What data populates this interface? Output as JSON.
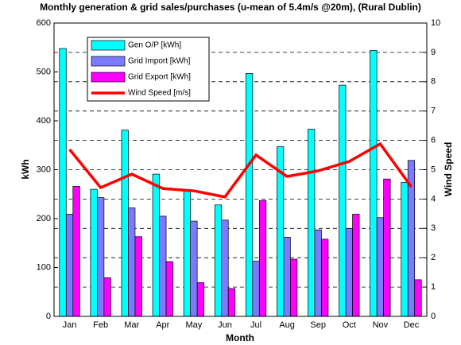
{
  "chart_data": {
    "type": "bar",
    "title": "Monthly generation & grid sales/purchases (u-mean of 5.4m/s @20m), (Rural Dublin)",
    "x_label": "Month",
    "y_label": "kWh",
    "y2_label": "Wind Speed",
    "categories": [
      "Jan",
      "Feb",
      "Mar",
      "Apr",
      "May",
      "Jun",
      "Jul",
      "Aug",
      "Sep",
      "Oct",
      "Nov",
      "Dec"
    ],
    "series": [
      {
        "name": "Gen O/P [kWh]",
        "color": "#00ffff",
        "type": "bar",
        "values": [
          548,
          260,
          381,
          291,
          259,
          228,
          497,
          347,
          383,
          473,
          544,
          274
        ]
      },
      {
        "name": "Grid Import [kWh]",
        "color": "#7b7bff",
        "type": "bar",
        "values": [
          209,
          243,
          222,
          205,
          195,
          197,
          113,
          162,
          177,
          180,
          202,
          319
        ]
      },
      {
        "name": "Grid Export [kWh]",
        "color": "#ff00ff",
        "type": "bar",
        "values": [
          266,
          79,
          163,
          112,
          69,
          57,
          237,
          117,
          158,
          209,
          281,
          75
        ]
      },
      {
        "name": "Wind Speed [m/s]",
        "color": "#ff0000",
        "type": "line",
        "axis": "y2",
        "values": [
          5.69,
          4.39,
          4.85,
          4.36,
          4.28,
          4.07,
          5.5,
          4.77,
          4.96,
          5.28,
          5.88,
          4.42
        ]
      }
    ],
    "ylim": [
      0,
      600
    ],
    "yticks": [
      0,
      100,
      200,
      300,
      400,
      500,
      600
    ],
    "y2lim": [
      0,
      10
    ],
    "y2ticks": [
      0,
      1,
      2,
      3,
      4,
      5,
      6,
      7,
      8,
      9,
      10
    ],
    "grid": true,
    "legend": "upper left"
  }
}
